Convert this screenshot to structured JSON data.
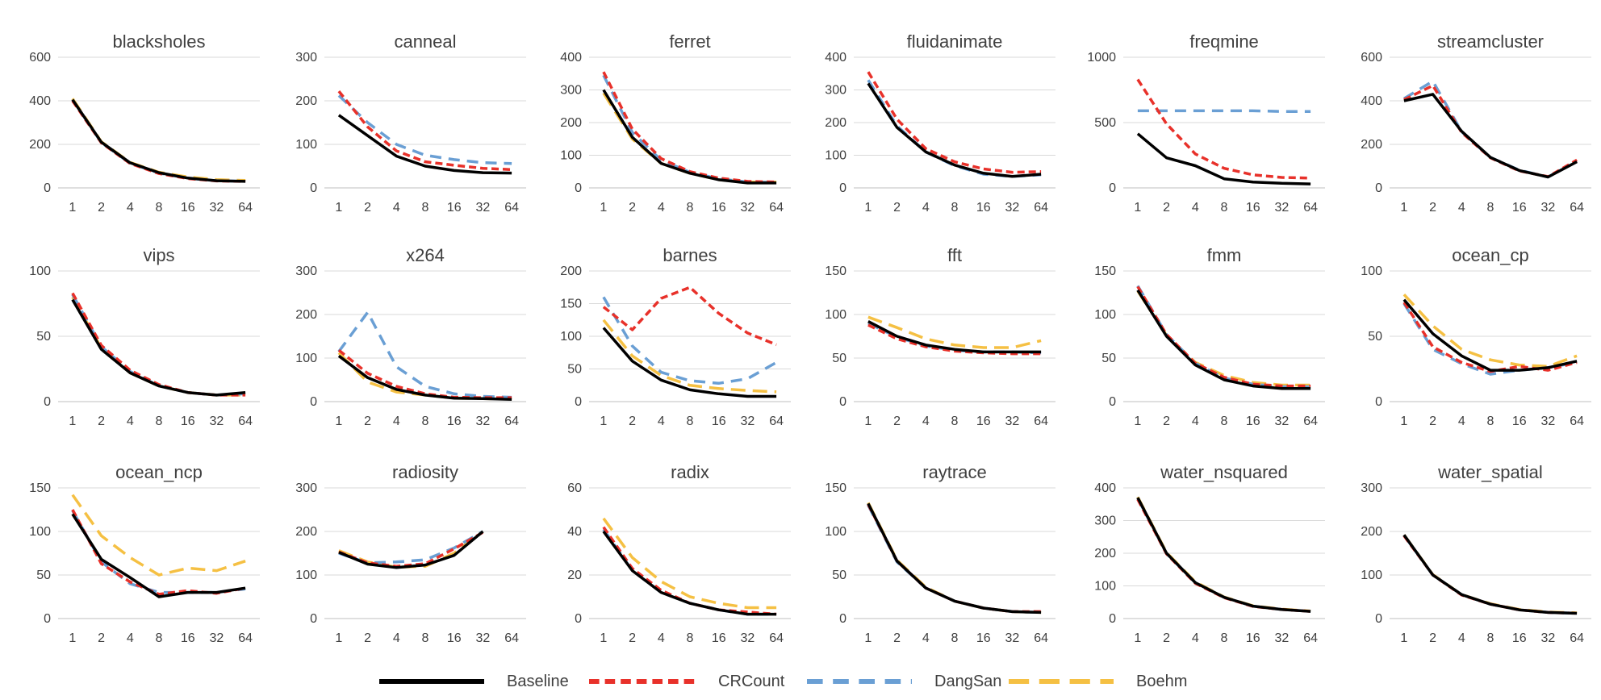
{
  "chart_data": {
    "type": "line",
    "x": [
      "1",
      "2",
      "4",
      "8",
      "16",
      "32",
      "64"
    ],
    "series_names": [
      "Baseline",
      "CRCount",
      "DangSan",
      "Boehm"
    ],
    "colors": {
      "Baseline": "#000000",
      "CRCount": "#e8312a",
      "DangSan": "#6a9fd4",
      "Boehm": "#f5c043"
    },
    "grid": true,
    "legend_position": "bottom-center",
    "panels": [
      {
        "title": "blacksholes",
        "ylim": [
          0,
          600
        ],
        "yticks": [
          "0",
          "200",
          "400",
          "600"
        ],
        "xticks": [
          "1",
          "2",
          "4",
          "8",
          "16",
          "32",
          "64"
        ],
        "series": {
          "Baseline": [
            405,
            210,
            115,
            70,
            45,
            33,
            30
          ],
          "CRCount": [
            400,
            207,
            112,
            66,
            43,
            32,
            30
          ],
          "DangSan": [
            405,
            208,
            113,
            68,
            44,
            33,
            30
          ],
          "Boehm": [
            410,
            212,
            117,
            72,
            50,
            38,
            34
          ]
        }
      },
      {
        "title": "canneal",
        "ylim": [
          0,
          300
        ],
        "yticks": [
          "0",
          "100",
          "200",
          "300"
        ],
        "xticks": [
          "1",
          "2",
          "4",
          "8",
          "16",
          "32",
          "64"
        ],
        "series": {
          "Baseline": [
            167,
            120,
            73,
            50,
            40,
            35,
            34
          ],
          "CRCount": [
            222,
            140,
            85,
            60,
            52,
            45,
            42
          ],
          "DangSan": [
            212,
            150,
            100,
            75,
            65,
            58,
            56
          ],
          "Boehm": [
            null,
            null,
            null,
            null,
            null,
            null,
            null
          ]
        }
      },
      {
        "title": "ferret",
        "ylim": [
          0,
          400
        ],
        "yticks": [
          "0",
          "100",
          "200",
          "300",
          "400"
        ],
        "xticks": [
          "1",
          "2",
          "4",
          "8",
          "16",
          "32",
          "64"
        ],
        "series": {
          "Baseline": [
            300,
            155,
            75,
            45,
            25,
            15,
            15
          ],
          "CRCount": [
            355,
            180,
            90,
            50,
            30,
            20,
            18
          ],
          "DangSan": [
            345,
            170,
            85,
            48,
            28,
            18,
            17
          ],
          "Boehm": [
            290,
            150,
            75,
            45,
            25,
            18,
            18
          ]
        }
      },
      {
        "title": "fluidanimate",
        "ylim": [
          0,
          400
        ],
        "yticks": [
          "0",
          "100",
          "200",
          "300",
          "400"
        ],
        "xticks": [
          "1",
          "2",
          "4",
          "8",
          "16",
          "32",
          "64"
        ],
        "series": {
          "Baseline": [
            320,
            185,
            110,
            70,
            45,
            35,
            42
          ],
          "CRCount": [
            355,
            210,
            120,
            80,
            58,
            48,
            50
          ],
          "DangSan": [
            330,
            190,
            110,
            68,
            42,
            35,
            40
          ],
          "Boehm": [
            null,
            null,
            null,
            null,
            null,
            null,
            null
          ]
        }
      },
      {
        "title": "freqmine",
        "ylim": [
          0,
          1000
        ],
        "yticks": [
          "0",
          "500",
          "1000"
        ],
        "xticks": [
          "1",
          "2",
          "4",
          "8",
          "16",
          "32",
          "64"
        ],
        "series": {
          "Baseline": [
            415,
            230,
            170,
            70,
            45,
            35,
            30
          ],
          "CRCount": [
            830,
            490,
            260,
            150,
            100,
            80,
            75
          ],
          "DangSan": [
            590,
            590,
            590,
            590,
            590,
            585,
            585
          ],
          "Boehm": [
            null,
            null,
            null,
            null,
            null,
            null,
            null
          ]
        }
      },
      {
        "title": "streamcluster",
        "ylim": [
          0,
          600
        ],
        "yticks": [
          "0",
          "200",
          "400",
          "600"
        ],
        "xticks": [
          "1",
          "2",
          "4",
          "8",
          "16",
          "32",
          "64"
        ],
        "series": {
          "Baseline": [
            400,
            430,
            260,
            140,
            80,
            50,
            120
          ],
          "CRCount": [
            405,
            470,
            255,
            138,
            78,
            52,
            128
          ],
          "DangSan": [
            410,
            490,
            258,
            140,
            82,
            50,
            122
          ],
          "Boehm": [
            null,
            null,
            null,
            null,
            null,
            null,
            null
          ]
        }
      },
      {
        "title": "vips",
        "ylim": [
          0,
          100
        ],
        "yticks": [
          "0",
          "50",
          "100"
        ],
        "xticks": [
          "1",
          "2",
          "4",
          "8",
          "16",
          "32",
          "64"
        ],
        "series": {
          "Baseline": [
            78,
            40,
            22,
            12,
            7,
            5,
            7
          ],
          "CRCount": [
            83,
            43,
            24,
            13,
            7,
            5,
            5
          ],
          "DangSan": [
            82,
            42,
            23,
            12,
            7,
            5,
            6
          ],
          "Boehm": [
            80,
            41,
            22,
            12,
            7,
            5,
            5
          ]
        }
      },
      {
        "title": "x264",
        "ylim": [
          0,
          300
        ],
        "yticks": [
          "0",
          "100",
          "200",
          "300"
        ],
        "xticks": [
          "1",
          "2",
          "4",
          "8",
          "16",
          "32",
          "64"
        ],
        "series": {
          "Baseline": [
            105,
            55,
            28,
            15,
            8,
            7,
            5
          ],
          "CRCount": [
            118,
            65,
            35,
            18,
            10,
            9,
            9
          ],
          "DangSan": [
            115,
            205,
            80,
            35,
            18,
            12,
            10
          ],
          "Boehm": [
            112,
            45,
            22,
            15,
            8,
            7,
            6
          ]
        }
      },
      {
        "title": "barnes",
        "ylim": [
          0,
          200
        ],
        "yticks": [
          "0",
          "50",
          "100",
          "150",
          "200"
        ],
        "xticks": [
          "1",
          "2",
          "4",
          "8",
          "16",
          "32",
          "64"
        ],
        "series": {
          "Baseline": [
            113,
            62,
            33,
            18,
            12,
            8,
            8
          ],
          "CRCount": [
            145,
            110,
            158,
            175,
            135,
            105,
            87
          ],
          "DangSan": [
            160,
            85,
            45,
            32,
            28,
            35,
            60
          ],
          "Boehm": [
            125,
            70,
            40,
            25,
            20,
            17,
            15
          ]
        }
      },
      {
        "title": "fft",
        "ylim": [
          0,
          150
        ],
        "yticks": [
          "0",
          "50",
          "100",
          "150"
        ],
        "xticks": [
          "1",
          "2",
          "4",
          "8",
          "16",
          "32",
          "64"
        ],
        "series": {
          "Baseline": [
            92,
            75,
            65,
            60,
            57,
            57,
            57
          ],
          "CRCount": [
            88,
            72,
            63,
            58,
            56,
            55,
            55
          ],
          "DangSan": [
            90,
            74,
            64,
            59,
            57,
            57,
            56
          ],
          "Boehm": [
            97,
            85,
            72,
            65,
            62,
            62,
            70
          ]
        }
      },
      {
        "title": "fmm",
        "ylim": [
          0,
          150
        ],
        "yticks": [
          "0",
          "50",
          "100",
          "150"
        ],
        "xticks": [
          "1",
          "2",
          "4",
          "8",
          "16",
          "32",
          "64"
        ],
        "series": {
          "Baseline": [
            128,
            75,
            42,
            25,
            18,
            15,
            15
          ],
          "CRCount": [
            132,
            77,
            44,
            28,
            20,
            18,
            18
          ],
          "DangSan": [
            133,
            77,
            44,
            27,
            20,
            17,
            17
          ],
          "Boehm": [
            127,
            76,
            45,
            30,
            22,
            19,
            19
          ]
        }
      },
      {
        "title": "ocean_cp",
        "ylim": [
          0,
          100
        ],
        "yticks": [
          "0",
          "50",
          "100"
        ],
        "xticks": [
          "1",
          "2",
          "4",
          "8",
          "16",
          "32",
          "64"
        ],
        "series": {
          "Baseline": [
            78,
            52,
            35,
            24,
            24,
            26,
            31
          ],
          "CRCount": [
            76,
            42,
            30,
            23,
            27,
            24,
            30
          ],
          "DangSan": [
            75,
            40,
            29,
            21,
            24,
            26,
            30
          ],
          "Boehm": [
            82,
            58,
            40,
            32,
            28,
            27,
            35
          ]
        }
      },
      {
        "title": "ocean_ncp",
        "ylim": [
          0,
          150
        ],
        "yticks": [
          "0",
          "50",
          "100",
          "150"
        ],
        "xticks": [
          "1",
          "2",
          "4",
          "8",
          "16",
          "32",
          "64"
        ],
        "series": {
          "Baseline": [
            120,
            68,
            47,
            25,
            30,
            30,
            35
          ],
          "CRCount": [
            125,
            63,
            42,
            28,
            32,
            29,
            35
          ],
          "DangSan": [
            124,
            65,
            40,
            30,
            30,
            30,
            34
          ],
          "Boehm": [
            142,
            95,
            70,
            50,
            58,
            55,
            66
          ]
        }
      },
      {
        "title": "radiosity",
        "ylim": [
          0,
          300
        ],
        "yticks": [
          "0",
          "100",
          "200",
          "300"
        ],
        "xticks": [
          "1",
          "2",
          "4",
          "8",
          "16",
          "32",
          "64"
        ],
        "series": {
          "Baseline": [
            152,
            125,
            117,
            123,
            145,
            200,
            null
          ],
          "CRCount": [
            153,
            128,
            120,
            126,
            160,
            198,
            null
          ],
          "DangSan": [
            150,
            128,
            130,
            135,
            162,
            200,
            null
          ],
          "Boehm": [
            156,
            130,
            118,
            120,
            150,
            200,
            null
          ]
        }
      },
      {
        "title": "radix",
        "ylim": [
          0,
          60
        ],
        "yticks": [
          "0",
          "20",
          "40",
          "60"
        ],
        "xticks": [
          "1",
          "2",
          "4",
          "8",
          "16",
          "32",
          "64"
        ],
        "series": {
          "Baseline": [
            40,
            22,
            12,
            7,
            4,
            2,
            2
          ],
          "CRCount": [
            42,
            23,
            13,
            7,
            4,
            3,
            2
          ],
          "DangSan": [
            41,
            22,
            12,
            7,
            4,
            2,
            2
          ],
          "Boehm": [
            46,
            28,
            17,
            10,
            7,
            5,
            5
          ]
        }
      },
      {
        "title": "raytrace",
        "ylim": [
          0,
          150
        ],
        "yticks": [
          "0",
          "50",
          "100",
          "150"
        ],
        "xticks": [
          "1",
          "2",
          "4",
          "8",
          "16",
          "32",
          "64"
        ],
        "series": {
          "Baseline": [
            132,
            66,
            35,
            20,
            12,
            8,
            7
          ],
          "CRCount": [
            131,
            66,
            35,
            20,
            12,
            8,
            8
          ],
          "DangSan": [
            130,
            65,
            35,
            20,
            12,
            8,
            7
          ],
          "Boehm": [
            133,
            67,
            36,
            20,
            12,
            8,
            7
          ]
        }
      },
      {
        "title": "water_nsquared",
        "ylim": [
          0,
          400
        ],
        "yticks": [
          "0",
          "100",
          "200",
          "300",
          "400"
        ],
        "xticks": [
          "1",
          "2",
          "4",
          "8",
          "16",
          "32",
          "64"
        ],
        "series": {
          "Baseline": [
            370,
            200,
            110,
            65,
            38,
            28,
            22
          ],
          "CRCount": [
            365,
            198,
            108,
            64,
            37,
            28,
            22
          ],
          "DangSan": [
            368,
            199,
            110,
            65,
            38,
            28,
            22
          ],
          "Boehm": [
            372,
            202,
            112,
            66,
            39,
            29,
            23
          ]
        }
      },
      {
        "title": "water_spatial",
        "ylim": [
          0,
          300
        ],
        "yticks": [
          "0",
          "100",
          "200",
          "300"
        ],
        "xticks": [
          "1",
          "2",
          "4",
          "8",
          "16",
          "32",
          "64"
        ],
        "series": {
          "Baseline": [
            192,
            100,
            55,
            33,
            20,
            14,
            12
          ],
          "CRCount": [
            190,
            100,
            54,
            33,
            20,
            14,
            12
          ],
          "DangSan": [
            191,
            100,
            55,
            33,
            20,
            14,
            12
          ],
          "Boehm": [
            192,
            101,
            55,
            34,
            21,
            15,
            13
          ]
        }
      }
    ]
  }
}
